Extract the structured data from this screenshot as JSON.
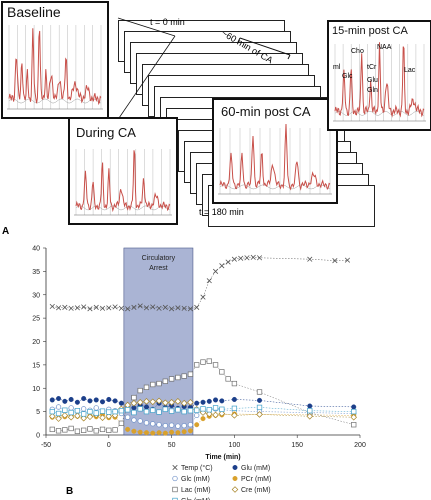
{
  "figure": {
    "panel_a_letter": "A",
    "panel_b_letter": "B"
  },
  "panel_a": {
    "baseline_title": "Baseline",
    "during_title": "During CA",
    "post15_title": "15-min post CA",
    "post60_title": "60-min post CA",
    "t0_label": "t = 0 min",
    "t180_label": "t = 180 min",
    "bracket_label": "~60 min of CA",
    "peaks": {
      "ml": "ml",
      "glc": "Glc",
      "cho": "Cho",
      "tcr": "tCr",
      "naa": "NAA",
      "glu": "Glu",
      "gln": "Gln",
      "lac": "Lac"
    },
    "colors": {
      "spectrum": "#c8504a",
      "frame": "#111111"
    }
  },
  "chart_data": {
    "type": "scatter",
    "xlabel": "Time (min)",
    "ylabel": "",
    "xlim": [
      -50,
      200
    ],
    "ylim": [
      0,
      40
    ],
    "xticks": [
      -50,
      0,
      50,
      100,
      150,
      200
    ],
    "yticks": [
      0,
      5,
      10,
      15,
      20,
      25,
      30,
      35,
      40
    ],
    "shaded_region": {
      "x": [
        12,
        67
      ],
      "label": "Circulatory\nArrest",
      "color": "#8e9bc6"
    },
    "grid": false,
    "legend_position": "bottom",
    "series": [
      {
        "name": "Temp (°C)",
        "marker": "x",
        "color": "#555555",
        "connect": true,
        "x": [
          -45,
          -40,
          -35,
          -30,
          -25,
          -20,
          -15,
          -10,
          -5,
          0,
          5,
          10,
          15,
          20,
          25,
          30,
          35,
          40,
          45,
          50,
          55,
          60,
          65,
          70,
          75,
          80,
          85,
          90,
          95,
          100,
          105,
          110,
          115,
          120,
          160,
          180,
          190
        ],
        "y": [
          27.5,
          27.2,
          27.3,
          27.1,
          27.2,
          27.4,
          27.0,
          27.3,
          27.1,
          27.2,
          27.4,
          27.1,
          27.0,
          27.3,
          27.6,
          27.2,
          27.4,
          27.1,
          27.3,
          27.0,
          27.2,
          27.1,
          27.0,
          27.3,
          29.5,
          33.0,
          35.0,
          36.2,
          37.0,
          37.6,
          37.8,
          37.9,
          38.0,
          37.9,
          37.6,
          37.3,
          37.4
        ]
      },
      {
        "name": "Glu (mM)",
        "marker": "filled-circle",
        "color": "#1c3f8a",
        "connect": true,
        "x": [
          -45,
          -40,
          -35,
          -30,
          -25,
          -20,
          -15,
          -10,
          -5,
          0,
          5,
          10,
          15,
          20,
          25,
          30,
          35,
          40,
          45,
          50,
          55,
          60,
          65,
          70,
          75,
          80,
          85,
          90,
          100,
          120,
          160,
          195
        ],
        "y": [
          7.5,
          7.8,
          7.2,
          7.6,
          7.0,
          7.8,
          7.3,
          7.5,
          7.1,
          7.6,
          7.3,
          6.8,
          6.2,
          5.8,
          6.4,
          6.0,
          5.5,
          6.8,
          5.9,
          6.3,
          5.7,
          6.1,
          5.9,
          6.8,
          7.0,
          7.2,
          7.5,
          7.3,
          7.6,
          7.4,
          6.2,
          6.0
        ]
      },
      {
        "name": "Glc (mM)",
        "marker": "open-circle",
        "color": "#6d8fc7",
        "connect": true,
        "x": [
          -45,
          -40,
          -35,
          -30,
          -25,
          -20,
          -15,
          -10,
          -5,
          0,
          5,
          10,
          15,
          20,
          25,
          30,
          35,
          40,
          45,
          50,
          55,
          60,
          65,
          70,
          75,
          80,
          85,
          90,
          100,
          120,
          160,
          195
        ],
        "y": [
          5.5,
          6.0,
          5.2,
          5.8,
          5.0,
          5.6,
          5.3,
          5.8,
          5.1,
          5.5,
          5.2,
          4.6,
          3.8,
          3.2,
          3.0,
          2.6,
          2.4,
          2.2,
          2.0,
          2.1,
          1.9,
          2.0,
          2.2,
          4.2,
          4.9,
          5.3,
          5.6,
          5.4,
          5.2,
          5.0,
          4.8,
          4.6
        ]
      },
      {
        "name": "PCr (mM)",
        "marker": "filled-circle",
        "color": "#d9a12c",
        "connect": true,
        "x": [
          -45,
          -40,
          -35,
          -30,
          -25,
          -20,
          -15,
          -10,
          -5,
          0,
          5,
          10,
          15,
          20,
          25,
          30,
          35,
          40,
          45,
          50,
          55,
          60,
          65,
          70,
          75,
          80,
          85,
          90,
          100,
          120,
          160,
          195
        ],
        "y": [
          3.8,
          4.3,
          3.9,
          4.2,
          4.0,
          3.6,
          4.1,
          3.9,
          4.4,
          3.7,
          3.8,
          2.5,
          1.2,
          0.8,
          0.6,
          0.5,
          0.4,
          0.5,
          0.4,
          0.6,
          0.5,
          0.7,
          0.9,
          2.2,
          3.5,
          4.0,
          4.2,
          4.3,
          4.5,
          4.4,
          4.3,
          4.2
        ]
      },
      {
        "name": "Lac (mM)",
        "marker": "open-square",
        "color": "#6f6f6f",
        "connect": true,
        "x": [
          -45,
          -40,
          -35,
          -30,
          -25,
          -20,
          -15,
          -10,
          -5,
          0,
          5,
          10,
          15,
          20,
          25,
          30,
          35,
          40,
          45,
          50,
          55,
          60,
          65,
          70,
          75,
          80,
          85,
          90,
          95,
          100,
          120,
          160,
          195
        ],
        "y": [
          1.2,
          0.9,
          1.1,
          1.4,
          0.8,
          1.0,
          1.3,
          0.9,
          1.2,
          1.0,
          1.1,
          2.5,
          6.0,
          8.0,
          9.5,
          10.2,
          10.8,
          11.0,
          11.5,
          12.0,
          12.3,
          12.6,
          13.0,
          15.0,
          15.6,
          15.8,
          15.0,
          13.5,
          12.0,
          11.0,
          9.2,
          4.8,
          2.2
        ]
      },
      {
        "name": "Cre (mM)",
        "marker": "open-diamond",
        "color": "#a8862a",
        "connect": true,
        "x": [
          -45,
          -40,
          -35,
          -30,
          -25,
          -20,
          -15,
          -10,
          -5,
          0,
          5,
          10,
          15,
          20,
          25,
          30,
          35,
          40,
          45,
          50,
          55,
          60,
          65,
          70,
          75,
          80,
          85,
          90,
          100,
          120,
          160,
          195
        ],
        "y": [
          4.0,
          3.5,
          4.2,
          3.8,
          4.1,
          3.6,
          3.9,
          4.3,
          3.7,
          4.0,
          4.2,
          5.6,
          6.4,
          6.8,
          7.0,
          7.2,
          7.1,
          7.3,
          6.9,
          7.0,
          7.2,
          6.8,
          7.0,
          5.5,
          4.8,
          4.5,
          4.3,
          4.6,
          4.2,
          4.4,
          4.0,
          3.8
        ]
      },
      {
        "name": "Gln (mM)",
        "marker": "open-square",
        "color": "#3fa0c9",
        "connect": true,
        "x": [
          -45,
          -40,
          -35,
          -30,
          -25,
          -20,
          -15,
          -10,
          -5,
          0,
          5,
          10,
          15,
          20,
          25,
          30,
          35,
          40,
          45,
          50,
          55,
          60,
          65,
          70,
          75,
          80,
          85,
          90,
          100,
          120,
          160,
          195
        ],
        "y": [
          5.0,
          4.6,
          5.3,
          4.8,
          5.2,
          4.5,
          5.0,
          4.7,
          5.1,
          4.9,
          5.0,
          5.2,
          5.4,
          4.8,
          5.6,
          5.0,
          5.3,
          4.9,
          5.5,
          5.1,
          5.4,
          5.0,
          5.2,
          5.3,
          5.6,
          5.4,
          5.8,
          5.5,
          5.7,
          5.9,
          5.2,
          5.0
        ]
      }
    ]
  }
}
